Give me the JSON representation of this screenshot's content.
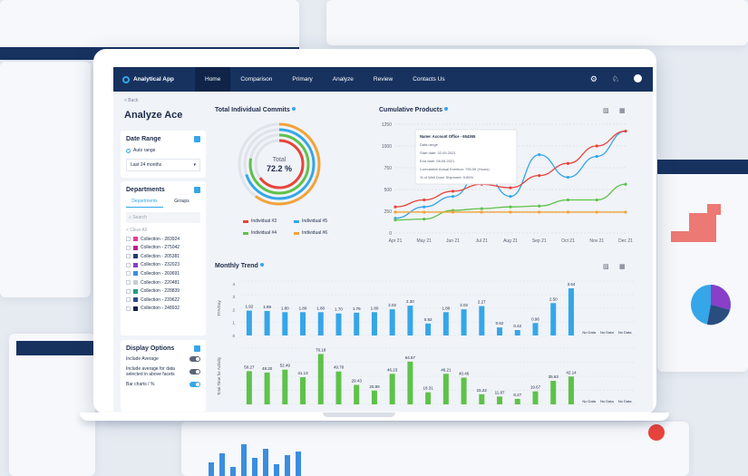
{
  "app": {
    "name": "Analytical App",
    "nav": [
      "Home",
      "Comparison",
      "Primary",
      "Analyze",
      "Review",
      "Contacts Us"
    ],
    "active": 0
  },
  "page": {
    "back": "< Back",
    "title": "Analyze Ace"
  },
  "date_range": {
    "title": "Date Range",
    "option": "Auto range",
    "value": "Last 24 months"
  },
  "departments": {
    "title": "Departments",
    "tabs": [
      "Departments",
      "Groups"
    ],
    "search_placeholder": "Search",
    "clear": "Clear All",
    "collections": [
      {
        "label": "Collection - 283924",
        "color": "#e83b9a"
      },
      {
        "label": "Collection - 275042",
        "color": "#c2178c"
      },
      {
        "label": "Collection - 205381",
        "color": "#243b6b"
      },
      {
        "label": "Collection - 232023",
        "color": "#8a3fc8"
      },
      {
        "label": "Collection - 269691",
        "color": "#3a8de0"
      },
      {
        "label": "Collection - 220481",
        "color": "#c7cdd7"
      },
      {
        "label": "Collection - 228839",
        "color": "#1c9e86"
      },
      {
        "label": "Collection - 239622",
        "color": "#2a4d7f"
      },
      {
        "label": "Collection - 248932",
        "color": "#13234a"
      }
    ]
  },
  "display_options": {
    "title": "Display Options",
    "items": [
      {
        "label": "Include Average",
        "on": false
      },
      {
        "label": "Include average for data selected in above facets",
        "on": false
      },
      {
        "label": "Bar charts / %",
        "on": true
      }
    ]
  },
  "commits": {
    "title": "Total Individual Commits",
    "center_label": "Total",
    "center_value": "72.2 %",
    "legend": [
      {
        "label": "Individual #3",
        "color": "#e8443c"
      },
      {
        "label": "Individual #5",
        "color": "#35a6e8"
      },
      {
        "label": "Individual #4",
        "color": "#5ec24a"
      },
      {
        "label": "Individual #6",
        "color": "#f2a33a"
      }
    ],
    "rings": [
      {
        "fraction": 0.6,
        "color": "#f2a33a"
      },
      {
        "fraction": 0.7,
        "color": "#35a6e8"
      },
      {
        "fraction": 0.78,
        "color": "#5ec24a"
      },
      {
        "fraction": 0.65,
        "color": "#e8443c"
      }
    ]
  },
  "chart_data": [
    {
      "type": "line",
      "title": "Cumulative Products",
      "x": [
        "Apr 21",
        "May 21",
        "Jun 21",
        "Jul 21",
        "Aug 21",
        "Sep 21",
        "Oct 21",
        "Nov 21",
        "Dec 21"
      ],
      "ylim": [
        0,
        1250
      ],
      "yticks": [
        0,
        250,
        500,
        750,
        1000,
        1250
      ],
      "series": [
        {
          "color": "#35a6e8",
          "values": [
            170,
            300,
            420,
            720,
            420,
            900,
            640,
            880,
            1170
          ]
        },
        {
          "color": "#e8443c",
          "values": [
            300,
            380,
            480,
            560,
            520,
            660,
            800,
            1000,
            1170
          ]
        },
        {
          "color": "#5ec24a",
          "values": [
            150,
            160,
            260,
            280,
            300,
            310,
            380,
            380,
            560
          ]
        },
        {
          "color": "#f2a33a",
          "values": [
            240,
            240,
            240,
            240,
            240,
            240,
            240,
            240,
            240
          ]
        }
      ],
      "tooltip": {
        "title": "Name: Account Office - 654365",
        "lines": [
          "Data range",
          "Start date: 02.05.2021",
          "End date: 08.05.2021",
          "Cumulative Actual Exertion: 795.59 (Hours)",
          "% of Well Done Shipment: 9.80%"
        ]
      }
    },
    {
      "type": "bar",
      "title": "Monthly Trend",
      "ylabel": "TFA/Day",
      "values": [
        1.92,
        1.89,
        1.8,
        1.8,
        1.8,
        1.7,
        1.76,
        1.8,
        2.02,
        2.3,
        0.92,
        1.8,
        2.02,
        2.27,
        0.62,
        0.42,
        0.96,
        2.5,
        3.64,
        null,
        null,
        null
      ],
      "labels": [
        "1.92",
        "1.89",
        "1.80",
        "1.80",
        "1.80",
        "1.70",
        "1.76",
        "1.80",
        "2.02",
        "2.30",
        "0.92",
        "1.80",
        "2.02",
        "2.27",
        "0.62",
        "0.42",
        "0.96",
        "2.50",
        "3.64",
        "No Data",
        "No Data",
        "No Data"
      ]
    },
    {
      "type": "bar",
      "ylabel": "Total Time for Activity",
      "values": [
        50.27,
        48.2,
        52.49,
        41.13,
        76.18,
        49.78,
        29.43,
        20.89,
        46.23,
        64.67,
        18.31,
        46.21,
        40.46,
        15.22,
        11.87,
        8.27,
        19.67,
        35.63,
        42.14,
        null,
        null,
        null
      ],
      "labels": [
        "50.27",
        "48.20",
        "52.49",
        "41.13",
        "76.18",
        "49.78",
        "29.43",
        "20.89",
        "46.23",
        "64.67",
        "18.31",
        "46.21",
        "40.46",
        "15.22",
        "11.87",
        "8.27",
        "19.67",
        "35.63",
        "42.14",
        "No Data",
        "No Data",
        "No Data"
      ]
    }
  ],
  "colors": {
    "navy": "#17325f",
    "blue": "#35a6e8",
    "green": "#5ec24a"
  }
}
